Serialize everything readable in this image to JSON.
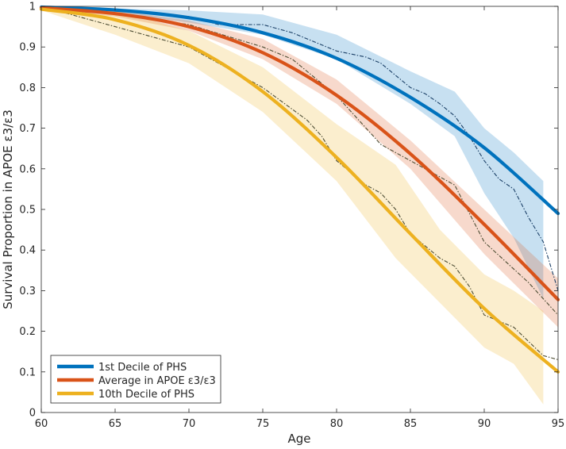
{
  "chart_data": {
    "type": "line",
    "title": "",
    "xlabel": "Age",
    "ylabel": "Survival Proportion in APOE ε3/ε3",
    "xlim": [
      60,
      95
    ],
    "ylim": [
      0,
      1
    ],
    "xticks": [
      60,
      65,
      70,
      75,
      80,
      85,
      90,
      95
    ],
    "yticks": [
      0,
      0.1,
      0.2,
      0.3,
      0.4,
      0.5,
      0.6,
      0.7,
      0.8,
      0.9,
      1
    ],
    "ytick_labels": [
      "0",
      "0.1",
      "0.2",
      "0.3",
      "0.4",
      "0.5",
      "0.6",
      "0.7",
      "0.8",
      "0.9",
      "1"
    ],
    "grid": false,
    "legend_position": "bottom-left",
    "series": [
      {
        "name": "1st Decile of PHS",
        "color": "#0072BD",
        "fitted": {
          "x": [
            60,
            65,
            70,
            75,
            80,
            85,
            90,
            95
          ],
          "y": [
            0.998,
            0.991,
            0.972,
            0.935,
            0.872,
            0.776,
            0.652,
            0.49
          ]
        },
        "empirical": {
          "x": [
            60,
            65,
            70,
            72,
            75,
            77,
            80,
            82,
            83,
            85,
            86,
            87,
            88,
            89,
            90,
            91,
            92,
            93,
            94,
            95
          ],
          "y": [
            1.0,
            0.99,
            0.975,
            0.955,
            0.955,
            0.935,
            0.89,
            0.875,
            0.86,
            0.8,
            0.785,
            0.76,
            0.73,
            0.68,
            0.62,
            0.575,
            0.55,
            0.48,
            0.42,
            0.3
          ]
        },
        "band": {
          "x": [
            60,
            65,
            70,
            75,
            80,
            85,
            88,
            90,
            92,
            94
          ],
          "lower": [
            1.0,
            0.985,
            0.96,
            0.93,
            0.87,
            0.76,
            0.68,
            0.54,
            0.43,
            0.28
          ],
          "upper": [
            1.0,
            0.995,
            0.99,
            0.98,
            0.93,
            0.84,
            0.79,
            0.7,
            0.64,
            0.57
          ]
        }
      },
      {
        "name": "Average in APOE ε3/ε3",
        "color": "#D95319",
        "fitted": {
          "x": [
            60,
            65,
            70,
            75,
            80,
            85,
            90,
            95
          ],
          "y": [
            0.996,
            0.982,
            0.95,
            0.886,
            0.781,
            0.637,
            0.463,
            0.278
          ]
        },
        "empirical": {
          "x": [
            60,
            65,
            70,
            75,
            77,
            79,
            80,
            83,
            85,
            88,
            90,
            93,
            95
          ],
          "y": [
            1.0,
            0.98,
            0.955,
            0.9,
            0.87,
            0.81,
            0.78,
            0.66,
            0.62,
            0.56,
            0.42,
            0.32,
            0.24
          ]
        },
        "band": {
          "x": [
            60,
            65,
            70,
            75,
            80,
            85,
            90,
            95
          ],
          "lower": [
            0.995,
            0.975,
            0.94,
            0.87,
            0.76,
            0.6,
            0.39,
            0.21
          ],
          "upper": [
            1.0,
            0.99,
            0.965,
            0.92,
            0.82,
            0.67,
            0.5,
            0.33
          ]
        }
      },
      {
        "name": "10th Decile of PHS",
        "color": "#EDB120",
        "fitted": {
          "x": [
            60,
            65,
            70,
            75,
            80,
            85,
            90,
            95
          ],
          "y": [
            0.993,
            0.967,
            0.904,
            0.79,
            0.628,
            0.44,
            0.256,
            0.1
          ]
        },
        "empirical": {
          "x": [
            60,
            63,
            66,
            70,
            72,
            75,
            78,
            79,
            80,
            82,
            83,
            84,
            85,
            87,
            88,
            89,
            90,
            92,
            94,
            95
          ],
          "y": [
            1.0,
            0.97,
            0.94,
            0.9,
            0.86,
            0.8,
            0.72,
            0.68,
            0.62,
            0.56,
            0.54,
            0.5,
            0.44,
            0.38,
            0.36,
            0.31,
            0.24,
            0.21,
            0.14,
            0.13
          ]
        },
        "band": {
          "x": [
            60,
            65,
            70,
            75,
            80,
            84,
            87,
            90,
            92,
            94
          ],
          "lower": [
            0.99,
            0.93,
            0.86,
            0.74,
            0.57,
            0.38,
            0.27,
            0.16,
            0.12,
            0.02
          ],
          "upper": [
            1.0,
            0.99,
            0.94,
            0.85,
            0.71,
            0.61,
            0.45,
            0.34,
            0.3,
            0.25
          ]
        }
      }
    ]
  }
}
